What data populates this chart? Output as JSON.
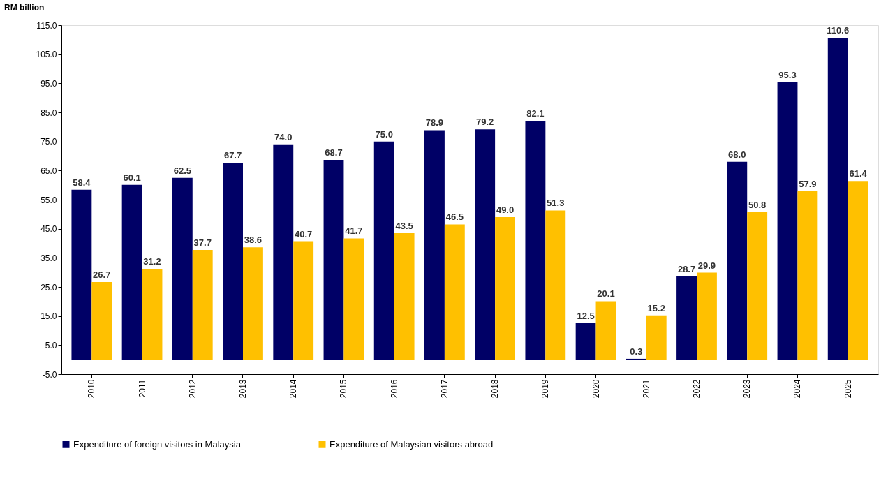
{
  "chart_data": {
    "type": "bar",
    "ylabel": "RM billion",
    "categories": [
      "2010",
      "2011",
      "2012",
      "2013",
      "2014",
      "2015",
      "2016",
      "2017",
      "2018",
      "2019",
      "2020",
      "2021",
      "2022",
      "2023",
      "2024",
      "2025"
    ],
    "series": [
      {
        "name": "Expenditure of foreign visitors in Malaysia",
        "color": "#000066",
        "values": [
          58.4,
          60.1,
          62.5,
          67.7,
          74.0,
          68.7,
          75.0,
          78.9,
          79.2,
          82.1,
          12.5,
          0.3,
          28.7,
          68.0,
          95.3,
          110.6
        ],
        "value_labels": [
          "58.4",
          "60.1",
          "62.5",
          "67.7",
          "74.0",
          "68.7",
          "75.0",
          "78.9",
          "79.2",
          "82.1",
          "12.5",
          "0.3",
          "28.7",
          "68.0",
          "95.3",
          "110.6"
        ]
      },
      {
        "name": "Expenditure of Malaysian visitors abroad",
        "color": "#ffc000",
        "values": [
          26.7,
          31.2,
          37.7,
          38.6,
          40.7,
          41.7,
          43.5,
          46.5,
          49.0,
          51.3,
          20.1,
          15.2,
          29.9,
          50.8,
          57.9,
          61.4
        ],
        "value_labels": [
          "26.7",
          "31.2",
          "37.7",
          "38.6",
          "40.7",
          "41.7",
          "43.5",
          "46.5",
          "49.0",
          "51.3",
          "20.1",
          "15.2",
          "29.9",
          "50.8",
          "57.9",
          "61.4"
        ]
      }
    ],
    "ylim": [
      -5,
      115
    ],
    "yticks": [
      {
        "value": -5,
        "label": "-5.0"
      },
      {
        "value": 5,
        "label": "5.0"
      },
      {
        "value": 15,
        "label": "15.0"
      },
      {
        "value": 25,
        "label": "25.0"
      },
      {
        "value": 35,
        "label": "35.0"
      },
      {
        "value": 45,
        "label": "45.0"
      },
      {
        "value": 55,
        "label": "55.0"
      },
      {
        "value": 65,
        "label": "65.0"
      },
      {
        "value": 75,
        "label": "75.0"
      },
      {
        "value": 85,
        "label": "85.0"
      },
      {
        "value": 95,
        "label": "95.0"
      },
      {
        "value": 105,
        "label": "105.0"
      },
      {
        "value": 115,
        "label": "115.0"
      }
    ],
    "grid": false,
    "legend": "bottom"
  }
}
